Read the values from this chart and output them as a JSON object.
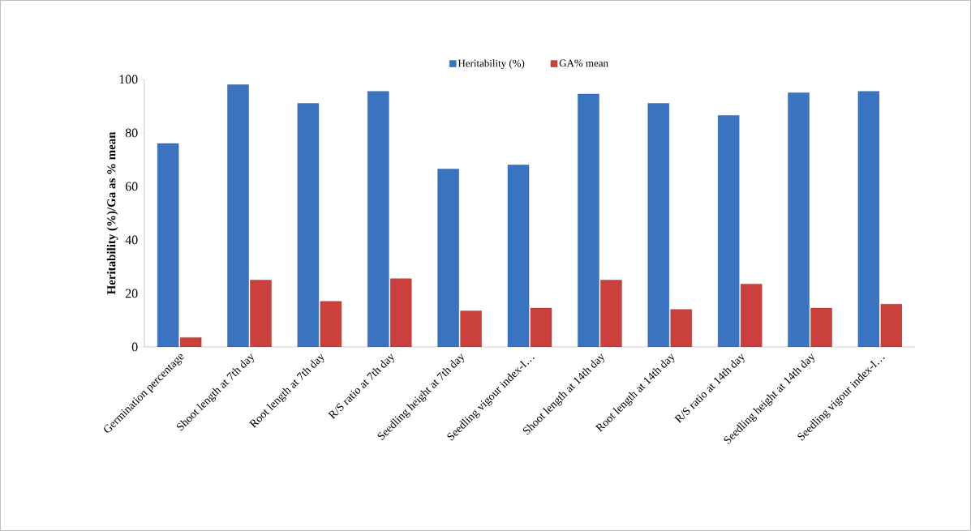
{
  "chart_data": {
    "type": "bar",
    "ylabel": "Heritability (%)/Ga as % mean",
    "categories": [
      "Germination percentage",
      "Shoot length at 7th day",
      "Root length  at 7th day",
      "R/S ratio  at 7th day",
      "Seedling height at 7th day",
      "Seedling vigour index-I…",
      "Shoot length  at 14th day",
      "Root length  at 14th day",
      "R/S ratio  at 14th day",
      "Seedling height  at 14th day",
      "Seedling vigour index-I…"
    ],
    "series": [
      {
        "name": "Heritability (%)",
        "color": "#3a74c0",
        "values": [
          76,
          98,
          91,
          95.5,
          66.5,
          68,
          94.5,
          91,
          86.5,
          95,
          95.5
        ]
      },
      {
        "name": "GA% mean",
        "color": "#c9403d",
        "values": [
          3.5,
          25,
          17,
          25.5,
          13.5,
          14.5,
          25,
          14,
          23.5,
          14.5,
          16
        ]
      }
    ],
    "ylim": [
      0,
      100
    ],
    "yticks": [
      0,
      20,
      40,
      60,
      80,
      100
    ],
    "legend": "top",
    "grid": false
  }
}
